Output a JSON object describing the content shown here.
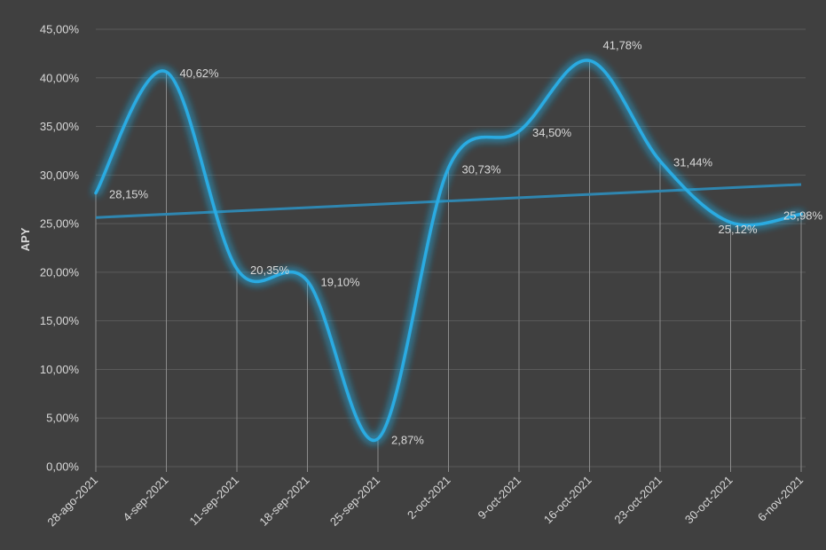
{
  "chart_data": {
    "type": "line",
    "ylabel": "APY",
    "categories": [
      "28-ago-2021",
      "4-sep-2021",
      "11-sep-2021",
      "18-sep-2021",
      "25-sep-2021",
      "2-oct-2021",
      "9-oct-2021",
      "16-oct-2021",
      "23-oct-2021",
      "30-oct-2021",
      "6-nov-2021"
    ],
    "series": [
      {
        "values": [
          28.15,
          40.62,
          20.35,
          19.1,
          2.87,
          30.73,
          34.5,
          41.78,
          31.44,
          25.12,
          25.98
        ],
        "labels": [
          "28,15%",
          "40,62%",
          "20,35%",
          "19,10%",
          "2,87%",
          "30,73%",
          "34,50%",
          "41,78%",
          "31,44%",
          "25,12%",
          "25,98%"
        ],
        "color": "#29abe2",
        "smooth": true,
        "glow": true
      }
    ],
    "trendline": {
      "type": "linear",
      "color": "#2f86b0"
    },
    "yticks": [
      "0,00%",
      "5,00%",
      "10,00%",
      "15,00%",
      "20,00%",
      "25,00%",
      "30,00%",
      "35,00%",
      "40,00%",
      "45,00%"
    ],
    "ylim": [
      0,
      45
    ],
    "grid": true,
    "legend": "none",
    "colors": {
      "background": "#404040",
      "gridline": "#5a5a5a",
      "dropline": "#8c8c8c",
      "text": "#d9d9d9"
    }
  }
}
